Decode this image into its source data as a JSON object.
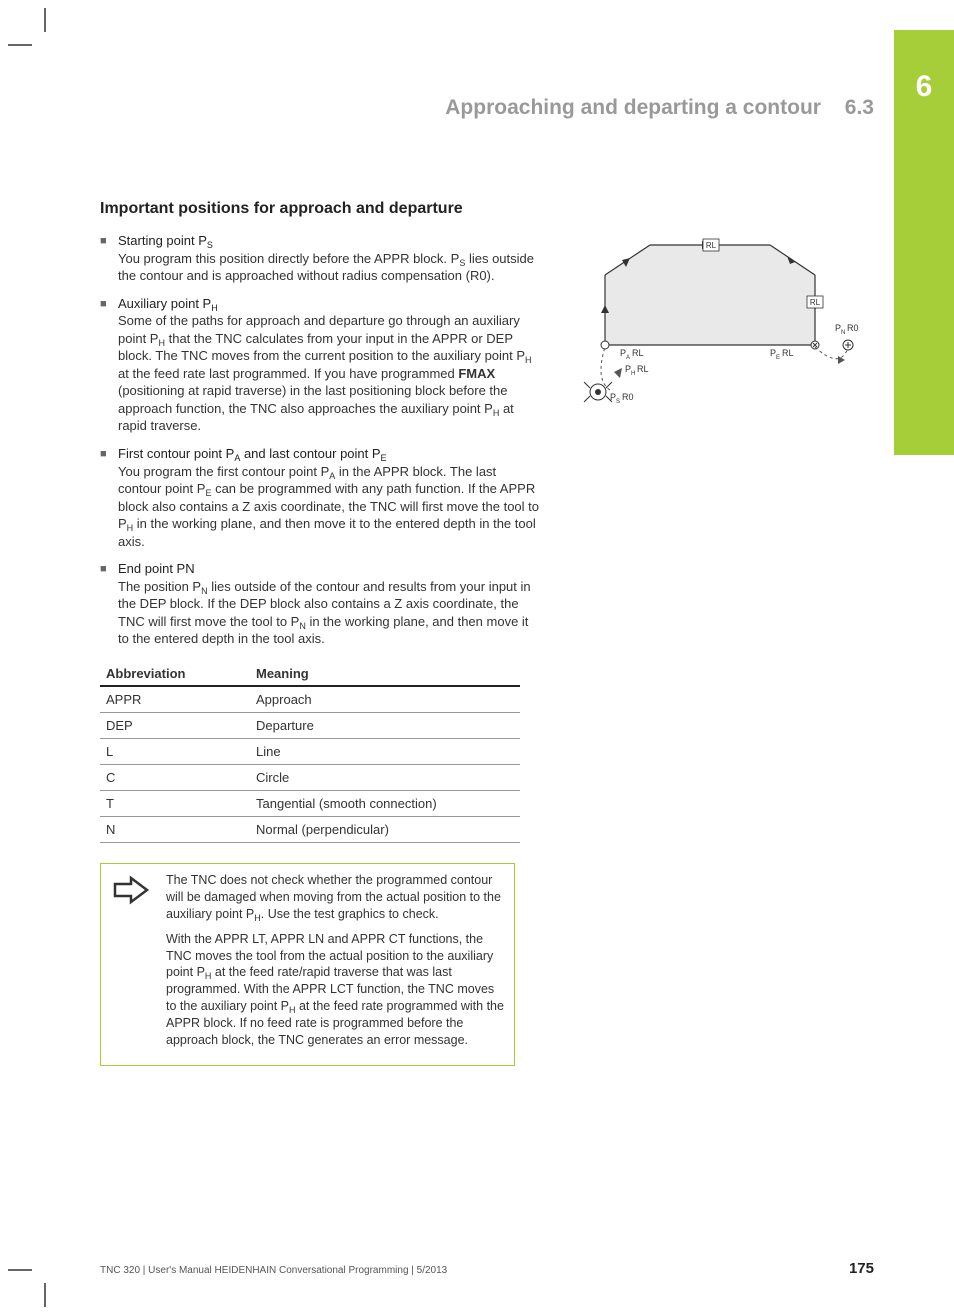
{
  "colors": {
    "accent_green": "#a6ce39",
    "chapter_text": "#ffffff",
    "heading_gray": "#999999",
    "body_text": "#333333",
    "rule_dark": "#222222",
    "rule_light": "#999999"
  },
  "chapter_tab": {
    "number": "6"
  },
  "header": {
    "title": "Approaching and departing a contour",
    "section": "6.3"
  },
  "section_title": "Important positions for approach and departure",
  "bullets": [
    {
      "head_pre": "Starting point P",
      "head_sub": "S",
      "head_post": "",
      "desc": "You program this position directly before the APPR block. P<sub>S</sub> lies outside the contour and is approached without radius compensation (R0)."
    },
    {
      "head_pre": "Auxiliary point P",
      "head_sub": "H",
      "head_post": "",
      "desc": "Some of the paths for approach and departure go through an auxiliary point P<sub>H</sub> that the TNC calculates from your input in the APPR or DEP block. The TNC moves from the current position to the auxiliary point P<sub>H</sub> at the feed rate last programmed. If you have programmed <b>FMAX</b> (positioning at rapid traverse) in the last positioning block before the approach function, the TNC also approaches the auxiliary point P<sub>H</sub> at rapid traverse."
    },
    {
      "head_pre": "First contour point P",
      "head_sub": "A",
      "head_post": " and last contour point P",
      "head_sub2": "E",
      "desc": "You program the first contour point P<sub>A</sub> in the APPR block. The last contour point P<sub>E</sub> can be programmed with any path function. If the APPR block also contains a Z axis coordinate, the TNC will first move the tool to P<sub>H</sub> in the working plane, and then move it to the entered depth in the tool axis."
    },
    {
      "head_pre": "End point PN",
      "head_sub": "",
      "head_post": "",
      "desc": "The position P<sub>N</sub> lies outside of the contour and results from your input in the DEP block. If the DEP block also contains a Z axis coordinate, the TNC will first move the tool to P<sub>N</sub> in the working plane, and then move it to the entered depth in the tool axis."
    }
  ],
  "table": {
    "columns": [
      "Abbreviation",
      "Meaning"
    ],
    "rows": [
      [
        "APPR",
        "Approach"
      ],
      [
        "DEP",
        "Departure"
      ],
      [
        "L",
        "Line"
      ],
      [
        "C",
        "Circle"
      ],
      [
        "T",
        "Tangential (smooth connection)"
      ],
      [
        "N",
        "Normal (perpendicular)"
      ]
    ]
  },
  "note": {
    "para1": "The TNC does not check whether the programmed contour will be damaged when moving from the actual position to the auxiliary point P<sub>H</sub>. Use the test graphics to check.",
    "para2": "With the APPR LT, APPR LN and APPR CT functions, the TNC moves the tool from the actual position to the auxiliary point P<sub>H</sub> at the feed rate/rapid traverse that was last programmed. With the APPR LCT function, the TNC moves to the auxiliary point P<sub>H</sub> at the feed rate programmed with the APPR block. If no feed rate is programmed before the approach block, the TNC generates an error message."
  },
  "diagram": {
    "type": "schematic",
    "labels": [
      "RL",
      "RL",
      "P_A RL",
      "P_E RL",
      "P_N R0",
      "P_H RL",
      "P_S R0"
    ],
    "stroke": "#333333",
    "stroke_dash": "#555555",
    "fill_grey": "#e9e9e9"
  },
  "footer": {
    "text": "TNC 320 | User's Manual HEIDENHAIN Conversational Programming | 5/2013",
    "page": "175"
  }
}
